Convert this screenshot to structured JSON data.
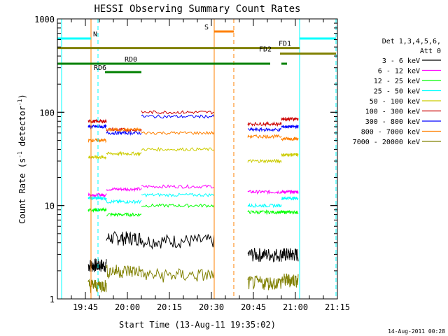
{
  "chart_data": {
    "type": "line",
    "title": "HESSI Observing Summary Count Rates",
    "xlabel": "Start Time (13-Aug-11 19:35:02)",
    "ylabel_main": "Count Rate (s",
    "ylabel_sup1": "-1",
    "ylabel_mid": " detector",
    "ylabel_sup2": "-1",
    "ylabel_end": ")",
    "yscale": "log",
    "ylim": [
      1,
      1000
    ],
    "xlim_min": [
      0,
      100
    ],
    "x_tick_labels": [
      "19:45",
      "20:00",
      "20:15",
      "20:30",
      "20:45",
      "21:00",
      "21:15"
    ],
    "x_tick_min": [
      10,
      25,
      40,
      55,
      70,
      85,
      100
    ],
    "y_tick_labels": [
      "1",
      "10",
      "100",
      "1000"
    ],
    "y_tick_values": [
      1,
      10,
      100,
      1000
    ],
    "legend_position": "right",
    "legend_header": [
      "Det 1,3,4,5,6,",
      "Att 0"
    ],
    "series": [
      {
        "name": "3 - 6 keV",
        "color": "#000000"
      },
      {
        "name": "6 - 12 keV",
        "color": "#ff00ff"
      },
      {
        "name": "12 - 25 keV",
        "color": "#00ff00"
      },
      {
        "name": "25 - 50 keV",
        "color": "#00ffff"
      },
      {
        "name": "50 - 100 keV",
        "color": "#cccc00"
      },
      {
        "name": "100 - 300 keV",
        "color": "#cc0000"
      },
      {
        "name": "300 - 800 keV",
        "color": "#0000ff"
      },
      {
        "name": "800 - 7000 keV",
        "color": "#ff8000"
      },
      {
        "name": "7000 - 20000 keV",
        "color": "#808000"
      }
    ],
    "flag_bars": [
      {
        "label": "N",
        "color": "#00ffff",
        "segments": [
          [
            -0.5,
            12
          ]
        ],
        "level_frac": 0.07
      },
      {
        "label": "",
        "color": "#00ffff",
        "segments": [
          [
            86.5,
            99.5
          ]
        ],
        "level_frac": 0.07
      },
      {
        "label": "S",
        "color": "#ff8000",
        "segments": [
          [
            56,
            63
          ]
        ],
        "level_frac": 0.045
      },
      {
        "label": "FD1",
        "color": "#808000",
        "segments": [
          [
            -0.5,
            86.5
          ]
        ],
        "level_frac": 0.104
      },
      {
        "label": "FD2",
        "color": "#808000",
        "segments": [
          [
            79.5,
            99.5
          ]
        ],
        "level_frac": 0.124
      },
      {
        "label": "RD0",
        "color": "#008000",
        "segments": [
          [
            -0.5,
            76
          ],
          [
            80,
            82
          ]
        ],
        "level_frac": 0.16
      },
      {
        "label": "RD6",
        "color": "#008000",
        "segments": [
          [
            17,
            30
          ]
        ],
        "level_frac": 0.19
      }
    ],
    "saa_lines_solid": [
      1.5,
      86.5
    ],
    "saa_lines_dashed": [
      14.5,
      99.5
    ],
    "night_lines_solid": [
      12,
      56
    ],
    "night_lines_dashed": [
      63
    ]
  },
  "footer_timestamp": "14-Aug-2011 00:28"
}
